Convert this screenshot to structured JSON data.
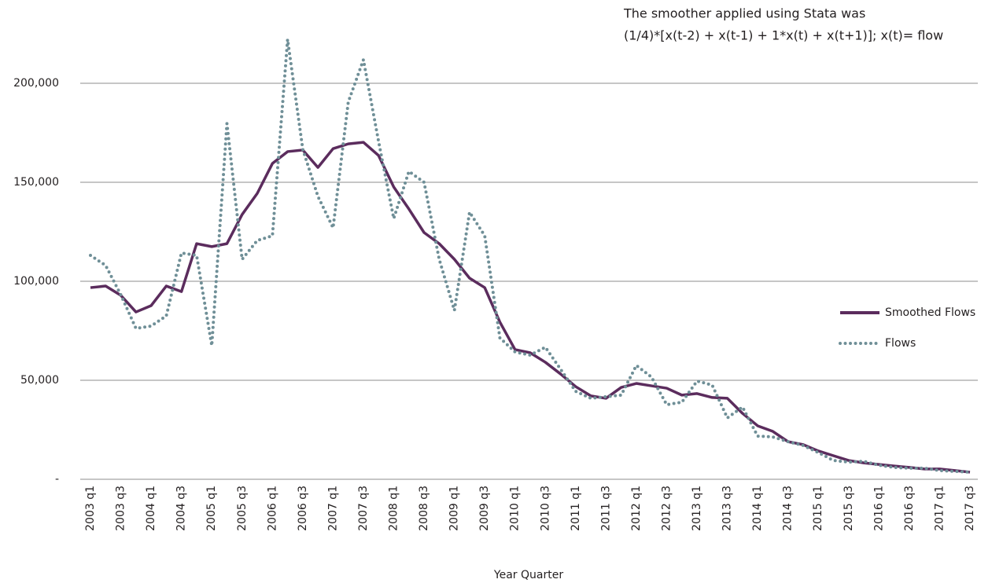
{
  "chart_data": {
    "type": "line",
    "annotations": [
      "The smoother applied using Stata was",
      "(1/4)*[x(t-2) + x(t-1) + 1*x(t) + x(t+1)]; x(t)= flow"
    ],
    "x_label": "Year Quarter",
    "categories": [
      "2003 q1",
      null,
      "2003 q3",
      null,
      "2004 q1",
      null,
      "2004 q3",
      null,
      "2005 q1",
      null,
      "2005 q3",
      null,
      "2006 q1",
      null,
      "2006 q3",
      null,
      "2007 q1",
      null,
      "2007 q3",
      null,
      "2008 q1",
      null,
      "2008 q3",
      null,
      "2009 q1",
      null,
      "2009 q3",
      null,
      "2010 q1",
      null,
      "2010 q3",
      null,
      "2011 q1",
      null,
      "2011 q3",
      null,
      "2012 q1",
      null,
      "2012 q3",
      null,
      "2013 q1",
      null,
      "2013 q3",
      null,
      "2014 q1",
      null,
      "2014 q3",
      null,
      "2015 q1",
      null,
      "2015 q3",
      null,
      "2016 q1",
      null,
      "2016 q3",
      null,
      "2017 q1",
      null,
      "2017 q3"
    ],
    "series": [
      {
        "name": "Smoothed Flows",
        "color": "#5b2c5d",
        "style": "solid",
        "values": [
          96800,
          97600,
          92900,
          84500,
          87700,
          97600,
          94800,
          119000,
          117500,
          119000,
          133700,
          144400,
          159500,
          165500,
          166300,
          157500,
          167000,
          169400,
          170200,
          163500,
          147600,
          136500,
          124600,
          119000,
          111100,
          101600,
          96800,
          79400,
          65500,
          63900,
          59100,
          53200,
          46800,
          42100,
          40900,
          46400,
          48400,
          47200,
          46000,
          42500,
          43300,
          41300,
          40900,
          33300,
          27000,
          24200,
          19000,
          17500,
          14300,
          11900,
          9500,
          8300,
          7500,
          6700,
          6000,
          5200,
          5200,
          4400,
          3600
        ]
      },
      {
        "name": "Flows",
        "color": "#6f8f97",
        "style": "dotted",
        "values": [
          113100,
          108000,
          93200,
          76200,
          77400,
          82500,
          114300,
          113100,
          67500,
          179700,
          111100,
          120600,
          123000,
          222200,
          166700,
          142900,
          127000,
          190500,
          211900,
          170600,
          131700,
          155500,
          150000,
          111100,
          85300,
          134900,
          123000,
          71400,
          64300,
          62700,
          66700,
          55600,
          44400,
          40900,
          41700,
          42500,
          57500,
          51600,
          37700,
          38900,
          49600,
          47600,
          31000,
          36500,
          21800,
          21400,
          19000,
          17100,
          13500,
          9500,
          8700,
          9100,
          7100,
          6000,
          5600,
          5600,
          4400,
          4000,
          3600
        ]
      }
    ],
    "ylim": [
      0,
      225000
    ],
    "yticks": [
      {
        "value": 0,
        "label": "-"
      },
      {
        "value": 50000,
        "label": "50,000"
      },
      {
        "value": 100000,
        "label": "100,000"
      },
      {
        "value": 150000,
        "label": "150,000"
      },
      {
        "value": 200000,
        "label": "200,000"
      }
    ],
    "grid": true,
    "legend": "right"
  }
}
